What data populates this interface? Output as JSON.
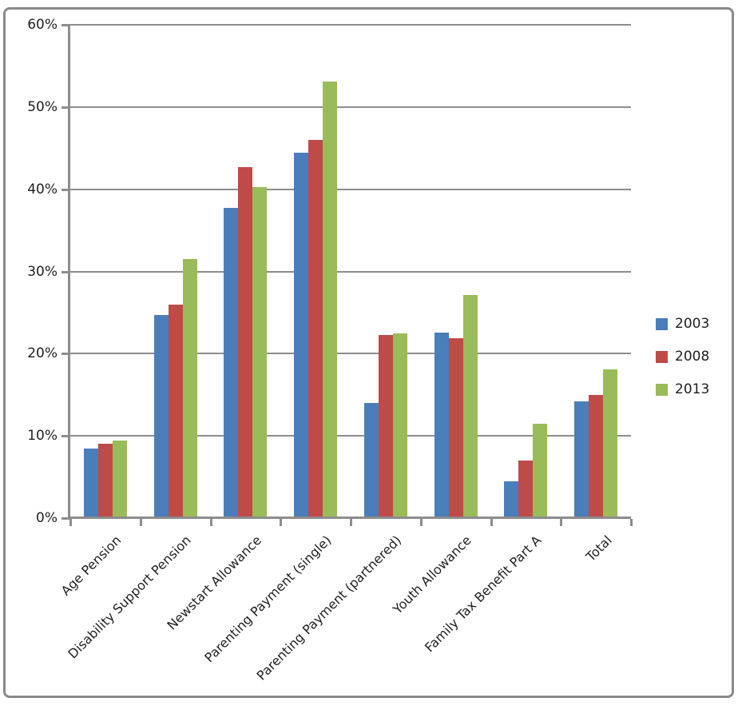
{
  "chart_data": {
    "type": "bar",
    "title": "",
    "xlabel": "",
    "ylabel": "",
    "categories": [
      "Age Pension",
      "Disability Support Pension",
      "Newstart Allowance",
      "Parenting Payment (single)",
      "Parenting Payment (partnered)",
      "Youth Allowance",
      "Family Tax Benefit Part A",
      "Total"
    ],
    "series": [
      {
        "name": "2003",
        "color": "#4A7EBB",
        "values": [
          8.5,
          24.7,
          37.7,
          44.4,
          14.0,
          22.6,
          4.5,
          14.2
        ]
      },
      {
        "name": "2008",
        "color": "#BE4B48",
        "values": [
          9.0,
          26.0,
          42.7,
          46.0,
          22.3,
          21.9,
          7.0,
          15.0
        ]
      },
      {
        "name": "2013",
        "color": "#9ABB59",
        "values": [
          9.4,
          31.5,
          40.3,
          53.1,
          22.5,
          27.1,
          11.5,
          18.1
        ]
      }
    ],
    "value_suffix": "%",
    "ylim": [
      0,
      60
    ],
    "ytick_step": 10,
    "ytick_labels": [
      "0%",
      "10%",
      "20%",
      "30%",
      "40%",
      "50%",
      "60%"
    ],
    "grid": true,
    "legend_position": "right"
  },
  "legend": {
    "items": [
      {
        "label": "2003",
        "color": "#4A7EBB"
      },
      {
        "label": "2008",
        "color": "#BE4B48"
      },
      {
        "label": "2013",
        "color": "#9ABB59"
      }
    ]
  },
  "colors": {
    "background": "#FFFFFF",
    "frame_border": "#8A8A8A",
    "gridline": "#8D8D8D",
    "axis": "#8D8D8D",
    "text": "#1F1F1F"
  }
}
